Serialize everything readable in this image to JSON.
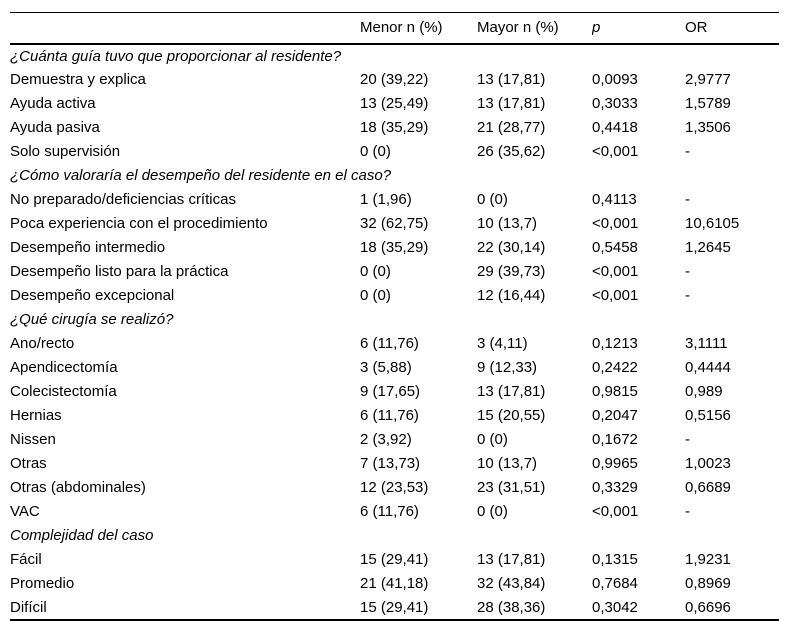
{
  "page": {
    "background": "#ffffff",
    "text_color": "#000000",
    "rule_color": "#000000"
  },
  "table": {
    "columns": {
      "label": "",
      "menor": "Menor n (%)",
      "mayor": "Mayor n (%)",
      "p": "p",
      "or": "OR"
    },
    "sections": [
      {
        "title": "¿Cuánta guía tuvo que proporcionar al residente?",
        "rows": [
          {
            "label": "Demuestra y explica",
            "menor": "20 (39,22)",
            "mayor": "13 (17,81)",
            "p": "0,0093",
            "or": "2,9777"
          },
          {
            "label": "Ayuda activa",
            "menor": "13 (25,49)",
            "mayor": "13 (17,81)",
            "p": "0,3033",
            "or": "1,5789"
          },
          {
            "label": "Ayuda pasiva",
            "menor": "18 (35,29)",
            "mayor": "21 (28,77)",
            "p": "0,4418",
            "or": "1,3506"
          },
          {
            "label": "Solo supervisión",
            "menor": "0 (0)",
            "mayor": "26 (35,62)",
            "p": "<0,001",
            "or": "-"
          }
        ]
      },
      {
        "title": "¿Cómo valoraría el desempeño del residente en el caso?",
        "rows": [
          {
            "label": "No preparado/deficiencias críticas",
            "menor": "1 (1,96)",
            "mayor": "0 (0)",
            "p": "0,4113",
            "or": "-"
          },
          {
            "label": "Poca experiencia con el procedimiento",
            "menor": "32 (62,75)",
            "mayor": "10 (13,7)",
            "p": "<0,001",
            "or": "10,6105"
          },
          {
            "label": "Desempeño intermedio",
            "menor": "18 (35,29)",
            "mayor": "22 (30,14)",
            "p": "0,5458",
            "or": "1,2645"
          },
          {
            "label": "Desempeño listo para la práctica",
            "menor": "0 (0)",
            "mayor": "29 (39,73)",
            "p": "<0,001",
            "or": "-"
          },
          {
            "label": "Desempeño excepcional",
            "menor": "0 (0)",
            "mayor": "12 (16,44)",
            "p": "<0,001",
            "or": "-"
          }
        ]
      },
      {
        "title": "¿Qué cirugía se realizó?",
        "rows": [
          {
            "label": "Ano/recto",
            "menor": "6 (11,76)",
            "mayor": "3 (4,11)",
            "p": "0,1213",
            "or": "3,1111"
          },
          {
            "label": "Apendicectomía",
            "menor": "3 (5,88)",
            "mayor": "9 (12,33)",
            "p": "0,2422",
            "or": "0,4444"
          },
          {
            "label": "Colecistectomía",
            "menor": "9 (17,65)",
            "mayor": "13 (17,81)",
            "p": "0,9815",
            "or": "0,989"
          },
          {
            "label": "Hernias",
            "menor": "6 (11,76)",
            "mayor": "15 (20,55)",
            "p": "0,2047",
            "or": "0,5156"
          },
          {
            "label": "Nissen",
            "menor": "2 (3,92)",
            "mayor": "0 (0)",
            "p": "0,1672",
            "or": "-"
          },
          {
            "label": "Otras",
            "menor": "7 (13,73)",
            "mayor": "10 (13,7)",
            "p": "0,9965",
            "or": "1,0023"
          },
          {
            "label": "Otras (abdominales)",
            "menor": "12 (23,53)",
            "mayor": "23 (31,51)",
            "p": "0,3329",
            "or": "0,6689"
          },
          {
            "label": "VAC",
            "menor": "6 (11,76)",
            "mayor": "0 (0)",
            "p": "<0,001",
            "or": "-"
          }
        ]
      },
      {
        "title": "Complejidad del caso",
        "rows": [
          {
            "label": "Fácil",
            "menor": "15 (29,41)",
            "mayor": "13 (17,81)",
            "p": "0,1315",
            "or": "1,9231"
          },
          {
            "label": "Promedio",
            "menor": "21 (41,18)",
            "mayor": "32 (43,84)",
            "p": "0,7684",
            "or": "0,8969"
          },
          {
            "label": "Difícil",
            "menor": "15 (29,41)",
            "mayor": "28 (38,36)",
            "p": "0,3042",
            "or": "0,6696"
          }
        ]
      }
    ]
  }
}
